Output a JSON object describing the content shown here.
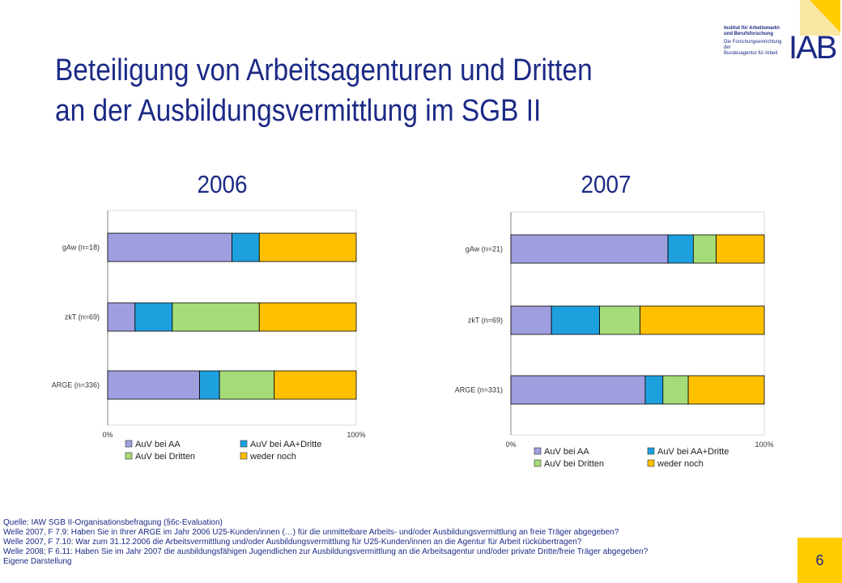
{
  "slide": {
    "title_line1": "Beteiligung von Arbeitsagenturen und Dritten",
    "title_line2": "an der Ausbildungsvermittlung im SGB II",
    "page_number": "6"
  },
  "logo": {
    "line1": "Institut für Arbeitsmarkt-",
    "line2": "und Berufsforschung",
    "line3": "Die Forschungseinrichtung der",
    "line4": "Bundesagentur für Arbeit",
    "mark": "IAB"
  },
  "footer": {
    "lines": [
      "Quelle: IAW SGB II-Organisationsbefragung (§6c-Evaluation)",
      "Welle 2007, F 7.9: Haben Sie in Ihrer ARGE im Jahr 2006 U25-Kunden/innen (…) für die unmittelbare Arbeits- und/oder Ausbildungsvermittlung an freie Träger abgegeben?",
      "Welle 2007, F 7.10: War zum 31.12.2006 die Arbeitsvermittlung und/oder Ausbildungsvermittlung für U25-Kunden/innen an die Agentur für Arbeit rückübertragen?",
      "Welle 2008; F 6.11: Haben Sie im Jahr 2007 die ausbildungsfähigen Jugendlichen zur Ausbildungsvermittlung an die Arbeitsagentur und/oder private Dritte/freie Träger abgegeben?",
      "Eigene Darstellung"
    ]
  },
  "colors": {
    "title": "#1c2a86",
    "AuV bei AA": "#9f9fe0",
    "AuV bei AA+Dritte": "#1ea0de",
    "AuV bei Dritten": "#a6dc78",
    "weder noch": "#ffc000"
  },
  "chart_data": [
    {
      "type": "bar",
      "orientation": "horizontal",
      "stacked": true,
      "title": "2006",
      "categories": [
        "gAw (n=18)",
        "zkT (n=69)",
        "ARGE (n=336)"
      ],
      "series": [
        {
          "name": "AuV bei AA",
          "values": [
            50,
            11,
            37
          ]
        },
        {
          "name": "AuV bei AA+Dritte",
          "values": [
            11,
            15,
            8
          ]
        },
        {
          "name": "AuV bei Dritten",
          "values": [
            0,
            35,
            22
          ]
        },
        {
          "name": "weder noch",
          "values": [
            39,
            39,
            33
          ]
        }
      ],
      "xlim": [
        0,
        100
      ],
      "x_tick_labels": [
        "0%",
        "100%"
      ],
      "legend": "bottom"
    },
    {
      "type": "bar",
      "orientation": "horizontal",
      "stacked": true,
      "title": "2007",
      "categories": [
        "gAw (n=21)",
        "zkT (n=69)",
        "ARGE (n=331)"
      ],
      "series": [
        {
          "name": "AuV bei AA",
          "values": [
            62,
            16,
            53
          ]
        },
        {
          "name": "AuV bei AA+Dritte",
          "values": [
            10,
            19,
            7
          ]
        },
        {
          "name": "AuV bei Dritten",
          "values": [
            9,
            16,
            10
          ]
        },
        {
          "name": "weder noch",
          "values": [
            19,
            49,
            30
          ]
        }
      ],
      "xlim": [
        0,
        100
      ],
      "x_tick_labels": [
        "0%",
        "100%"
      ],
      "legend": "bottom"
    }
  ]
}
